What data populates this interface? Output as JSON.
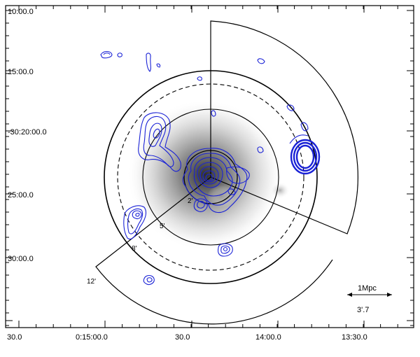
{
  "image": {
    "y_ticks": [
      "10:00.0",
      "15:00.0",
      "-30:20:00.0",
      "25:00.0",
      "30:00.0"
    ],
    "x_ticks": [
      "30.0",
      "0:15:00.0",
      "30.0",
      "14:00.0",
      "13:30.0"
    ],
    "ring_labels": [
      "2'",
      "5'",
      "8'",
      "12'"
    ],
    "scale_bar_label": "1Mpc",
    "scale_bar_arcmin": "3'.7",
    "colors": {
      "contour": "#1a22d6",
      "frame": "#000000",
      "xray_halo": "#5a5a5a"
    }
  }
}
